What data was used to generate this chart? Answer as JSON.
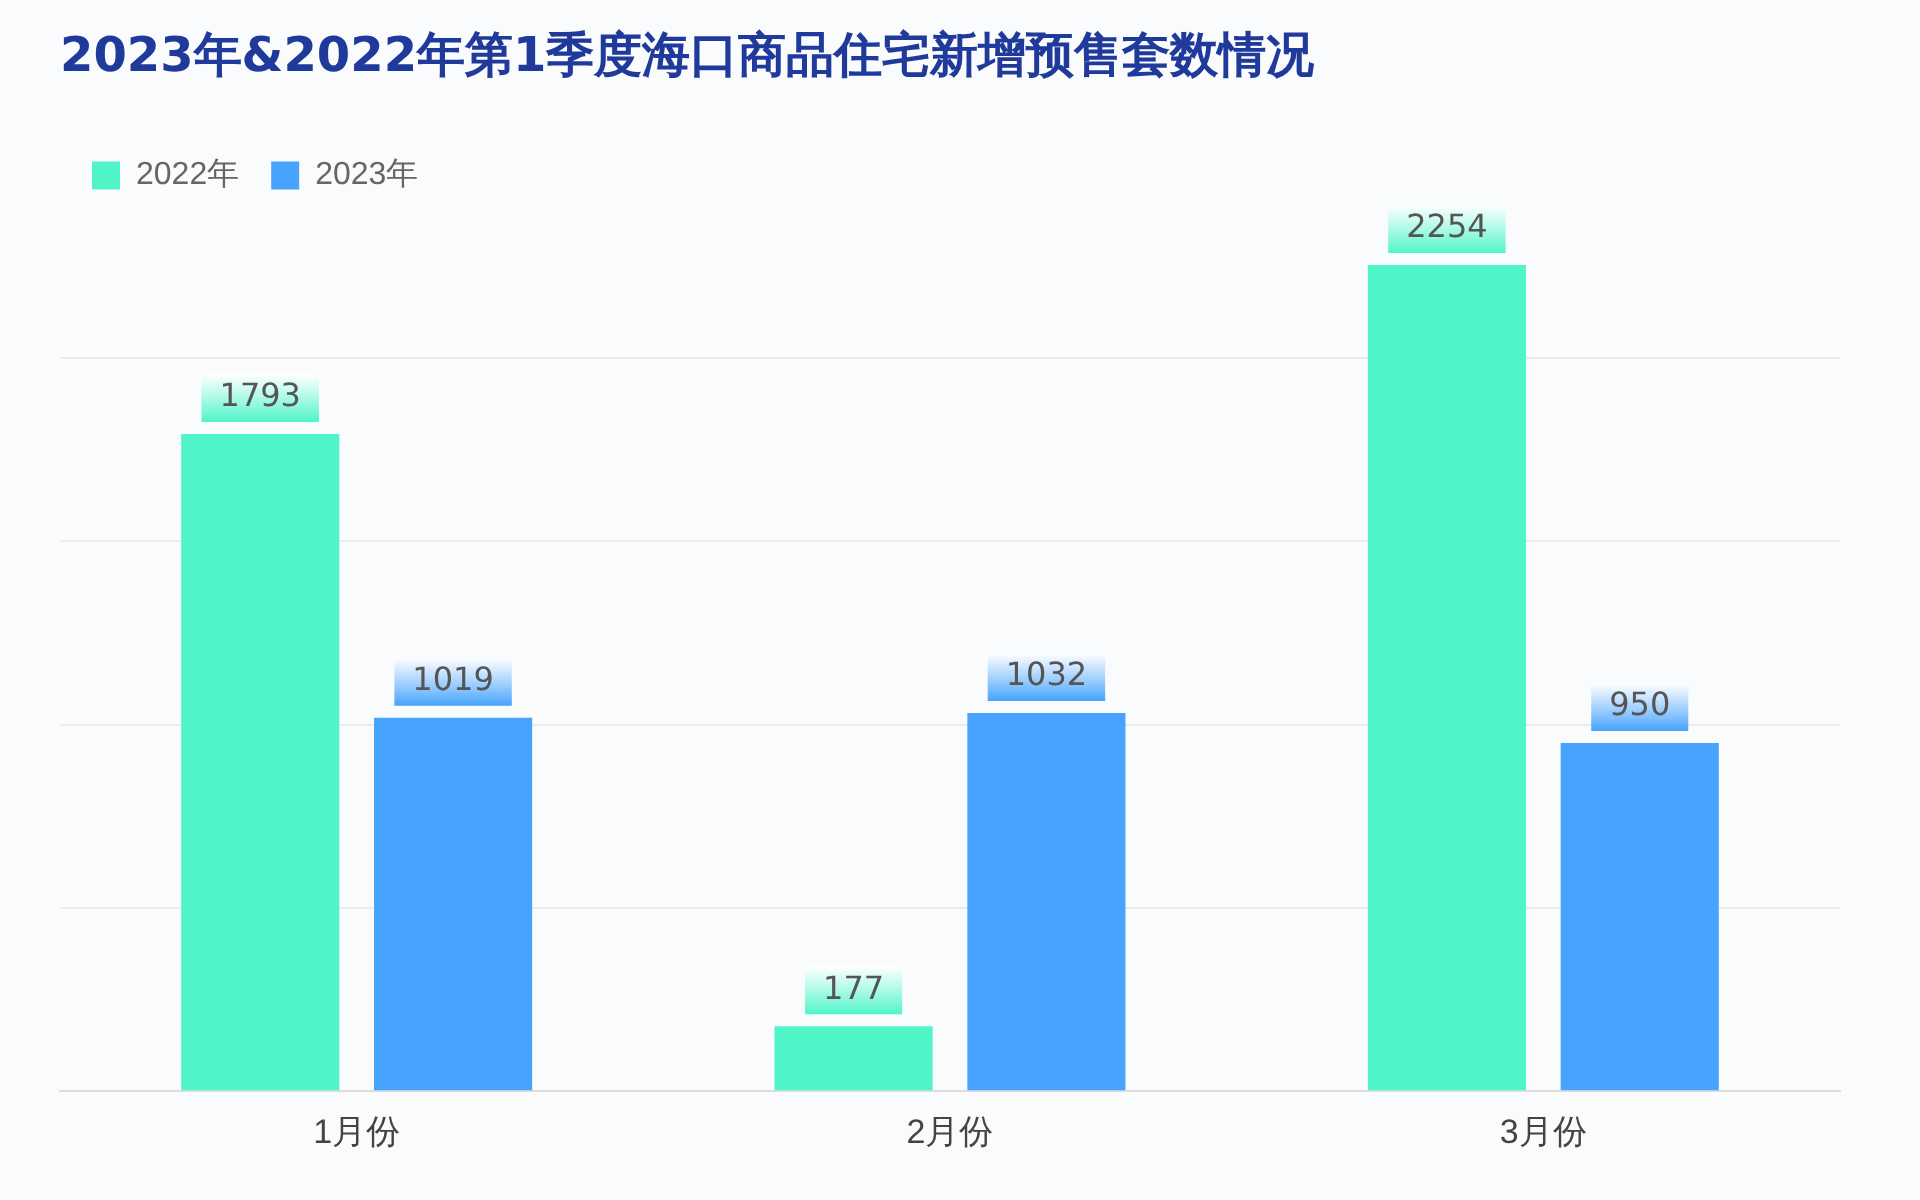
{
  "chart_data": {
    "type": "bar",
    "title": "2023年&2022年第1季度海口商品住宅新增预售套数情况",
    "categories": [
      "1月份",
      "2月份",
      "3月份"
    ],
    "series": [
      {
        "name": "2022年",
        "color": "#4ff5c9",
        "values": [
          1793,
          177,
          2254
        ]
      },
      {
        "name": "2023年",
        "color": "#47a3fd",
        "values": [
          1019,
          1032,
          950
        ]
      }
    ],
    "ylim": [
      0,
      2400
    ],
    "yticks": [
      {
        "value": 0,
        "label": null
      },
      {
        "value": 500,
        "label": null
      },
      {
        "value": 1000,
        "label": null
      },
      {
        "value": 1500,
        "label": null
      },
      {
        "value": 2000,
        "label": null
      }
    ],
    "tick_labels": "x",
    "grid": "y",
    "legend": "top left",
    "data_labels": true
  }
}
